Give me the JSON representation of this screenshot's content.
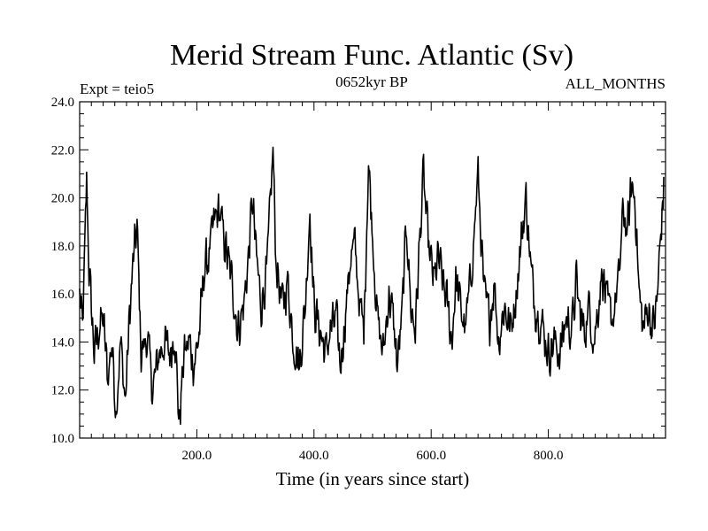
{
  "chart_data": {
    "type": "line",
    "title": "Merid Stream Func. Atlantic (Sv)",
    "subtitle_left": "Expt = teio5",
    "subtitle_center": "0652kyr BP",
    "subtitle_right": "ALL_MONTHS",
    "xlabel": "Time (in years since start)",
    "ylabel": "",
    "xlim": [
      0,
      1000
    ],
    "ylim": [
      10,
      24
    ],
    "xticks": [
      200,
      400,
      600,
      800
    ],
    "xtick_labels": [
      "200.0",
      "400.0",
      "600.0",
      "800.0"
    ],
    "yticks": [
      10,
      12,
      14,
      16,
      18,
      20,
      22,
      24
    ],
    "ytick_labels": [
      "10.0",
      "12.0",
      "14.0",
      "16.0",
      "18.0",
      "20.0",
      "22.0",
      "24.0"
    ],
    "grid": false,
    "series": [
      {
        "name": "Merid Stream Func. Atlantic",
        "color": "#000000",
        "anchors": [
          [
            0,
            16.0
          ],
          [
            5,
            14.5
          ],
          [
            8,
            17.0
          ],
          [
            12,
            20.8
          ],
          [
            16,
            17.0
          ],
          [
            20,
            15.5
          ],
          [
            25,
            13.5
          ],
          [
            32,
            14.5
          ],
          [
            40,
            15.0
          ],
          [
            48,
            12.5
          ],
          [
            55,
            14.0
          ],
          [
            62,
            11.2
          ],
          [
            70,
            14.0
          ],
          [
            78,
            11.5
          ],
          [
            85,
            15.0
          ],
          [
            92,
            17.5
          ],
          [
            98,
            18.8
          ],
          [
            105,
            13.5
          ],
          [
            115,
            14.2
          ],
          [
            125,
            12.0
          ],
          [
            135,
            13.5
          ],
          [
            145,
            14.0
          ],
          [
            155,
            13.5
          ],
          [
            162,
            14.5
          ],
          [
            170,
            10.6
          ],
          [
            178,
            13.5
          ],
          [
            188,
            14.0
          ],
          [
            195,
            13.0
          ],
          [
            205,
            14.5
          ],
          [
            212,
            17.0
          ],
          [
            220,
            17.5
          ],
          [
            230,
            19.0
          ],
          [
            238,
            19.5
          ],
          [
            245,
            18.5
          ],
          [
            252,
            17.5
          ],
          [
            260,
            16.5
          ],
          [
            270,
            14.5
          ],
          [
            280,
            15.5
          ],
          [
            288,
            17.5
          ],
          [
            295,
            20.0
          ],
          [
            300,
            18.0
          ],
          [
            310,
            15.5
          ],
          [
            320,
            17.0
          ],
          [
            330,
            22.0
          ],
          [
            335,
            17.5
          ],
          [
            345,
            15.5
          ],
          [
            355,
            16.5
          ],
          [
            365,
            14.0
          ],
          [
            375,
            13.0
          ],
          [
            385,
            15.5
          ],
          [
            393,
            19.5
          ],
          [
            400,
            15.5
          ],
          [
            410,
            14.5
          ],
          [
            420,
            13.5
          ],
          [
            428,
            14.5
          ],
          [
            438,
            15.0
          ],
          [
            445,
            13.0
          ],
          [
            455,
            15.5
          ],
          [
            462,
            17.5
          ],
          [
            470,
            18.0
          ],
          [
            478,
            15.5
          ],
          [
            485,
            14.5
          ],
          [
            493,
            21.5
          ],
          [
            500,
            18.5
          ],
          [
            508,
            15.0
          ],
          [
            518,
            13.5
          ],
          [
            528,
            16.0
          ],
          [
            535,
            15.0
          ],
          [
            542,
            13.0
          ],
          [
            550,
            15.0
          ],
          [
            558,
            19.0
          ],
          [
            565,
            15.5
          ],
          [
            573,
            14.5
          ],
          [
            580,
            18.0
          ],
          [
            587,
            21.0
          ],
          [
            592,
            19.0
          ],
          [
            598,
            17.5
          ],
          [
            605,
            16.5
          ],
          [
            612,
            17.5
          ],
          [
            620,
            16.5
          ],
          [
            628,
            15.5
          ],
          [
            635,
            14.0
          ],
          [
            642,
            16.5
          ],
          [
            650,
            15.5
          ],
          [
            658,
            14.5
          ],
          [
            665,
            16.0
          ],
          [
            672,
            18.0
          ],
          [
            680,
            21.0
          ],
          [
            690,
            16.0
          ],
          [
            700,
            15.0
          ],
          [
            708,
            16.5
          ],
          [
            715,
            14.0
          ],
          [
            725,
            15.5
          ],
          [
            735,
            14.5
          ],
          [
            745,
            16.0
          ],
          [
            755,
            18.5
          ],
          [
            762,
            20.0
          ],
          [
            770,
            17.0
          ],
          [
            778,
            15.5
          ],
          [
            785,
            15.0
          ],
          [
            792,
            14.5
          ],
          [
            800,
            13.5
          ],
          [
            810,
            14.0
          ],
          [
            820,
            13.5
          ],
          [
            830,
            15.0
          ],
          [
            840,
            14.5
          ],
          [
            848,
            16.5
          ],
          [
            855,
            15.0
          ],
          [
            862,
            14.5
          ],
          [
            870,
            15.5
          ],
          [
            878,
            14.0
          ],
          [
            885,
            15.5
          ],
          [
            892,
            17.0
          ],
          [
            900,
            15.5
          ],
          [
            910,
            15.0
          ],
          [
            920,
            16.5
          ],
          [
            928,
            19.5
          ],
          [
            935,
            18.5
          ],
          [
            942,
            20.5
          ],
          [
            948,
            20.0
          ],
          [
            955,
            16.0
          ],
          [
            962,
            14.5
          ],
          [
            970,
            15.5
          ],
          [
            978,
            14.5
          ],
          [
            985,
            15.5
          ],
          [
            992,
            18.5
          ],
          [
            997,
            20.5
          ]
        ]
      }
    ]
  }
}
